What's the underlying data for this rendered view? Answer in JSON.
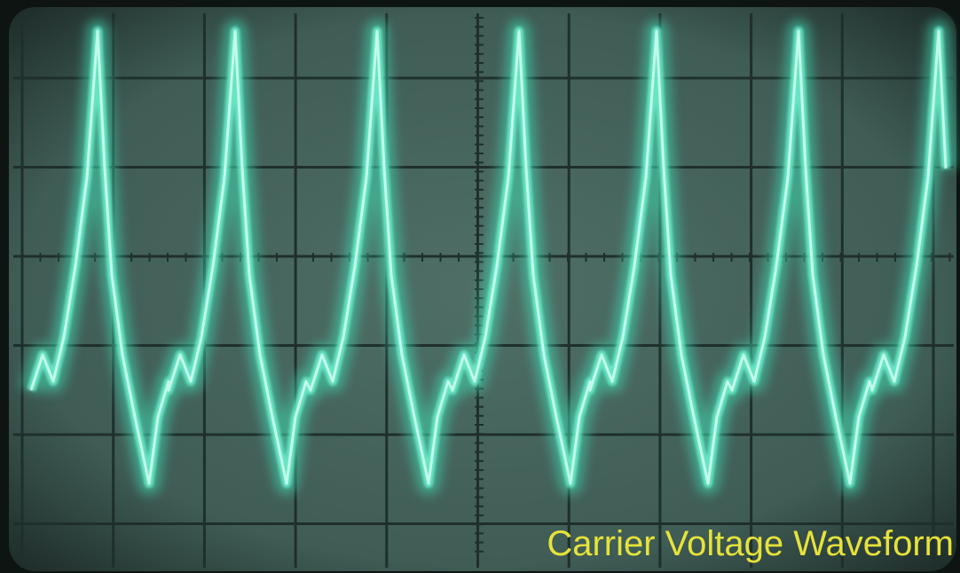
{
  "caption": "Carrier Voltage Waveform"
}
